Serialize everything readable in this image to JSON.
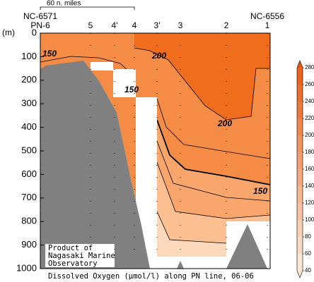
{
  "chart_data": {
    "type": "contour",
    "title": "Dissolved Oxygen (μmol/l) along PN line, 06-06",
    "ylabel": "(m)",
    "ylim": [
      0,
      1000
    ],
    "yticks": [
      0,
      100,
      200,
      300,
      400,
      500,
      600,
      700,
      800,
      900,
      1000
    ],
    "stations": [
      "PN-6",
      "5",
      "4'",
      "4",
      "3'",
      "3",
      "2",
      "1"
    ],
    "end_stations": [
      "NC-6571",
      "NC-6556"
    ],
    "scale_label": "60 n. miles",
    "credit": [
      "Product of",
      "Nagasaki Marine",
      "Observatory"
    ],
    "contour_labels": [
      150,
      200,
      150,
      200,
      150
    ],
    "colorbar": {
      "lim": [
        40,
        280
      ],
      "ticks": [
        40,
        60,
        80,
        100,
        120,
        140,
        160,
        180,
        200,
        220,
        240,
        260,
        280
      ],
      "low_color": "#fde6d5",
      "high_color": "#e8560a"
    }
  }
}
